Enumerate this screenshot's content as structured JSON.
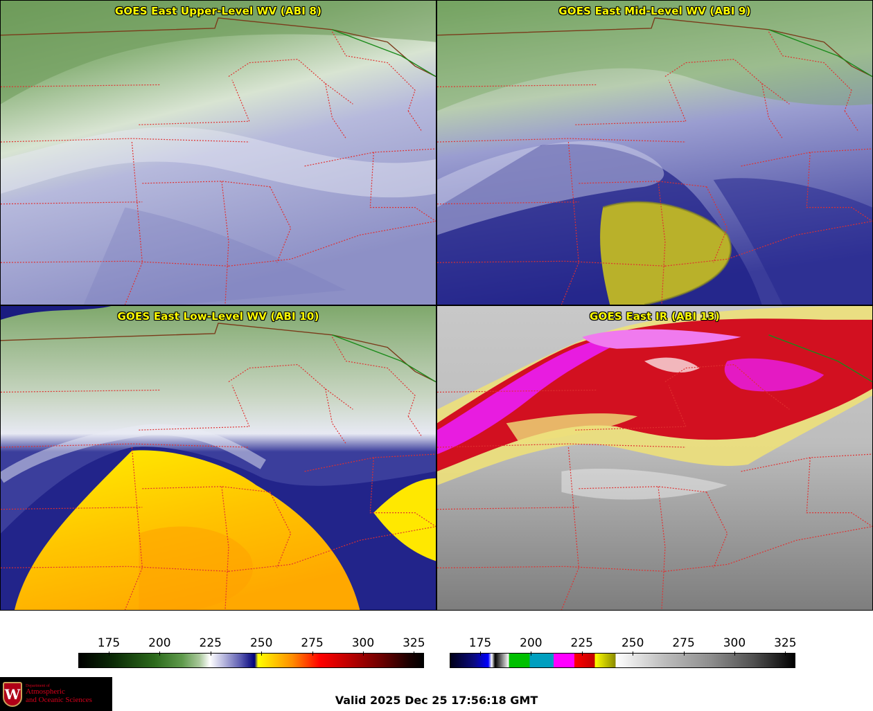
{
  "panels": [
    {
      "id": "upper",
      "title": "GOES East Upper-Level WV (ABI 8)",
      "palette": "wv-upper"
    },
    {
      "id": "mid",
      "title": "GOES East Mid-Level WV (ABI 9)",
      "palette": "wv-mid"
    },
    {
      "id": "low",
      "title": "GOES East Low-Level WV (ABI 10)",
      "palette": "wv-low"
    },
    {
      "id": "ir",
      "title": "GOES East IR (ABI 13)",
      "palette": "ir"
    }
  ],
  "colorbars": {
    "wv": {
      "min": 160,
      "max": 330,
      "ticks": [
        "175",
        "200",
        "225",
        "250",
        "275",
        "300",
        "325"
      ]
    },
    "ir": {
      "min": 160,
      "max": 330,
      "ticks": [
        "175",
        "200",
        "225",
        "250",
        "275",
        "300",
        "325"
      ]
    }
  },
  "colors": {
    "state_borders": "#e03030",
    "country_border": "#7a3a1a",
    "lake_border": "#1a8a1a",
    "title_text": "#ffff00"
  },
  "logo": {
    "line1": "Department of",
    "line2": "Atmospheric",
    "line3": "and Oceanic Sciences",
    "crest": "W"
  },
  "valid_time": "Valid 2025 Dec 25 17:56:18 GMT"
}
